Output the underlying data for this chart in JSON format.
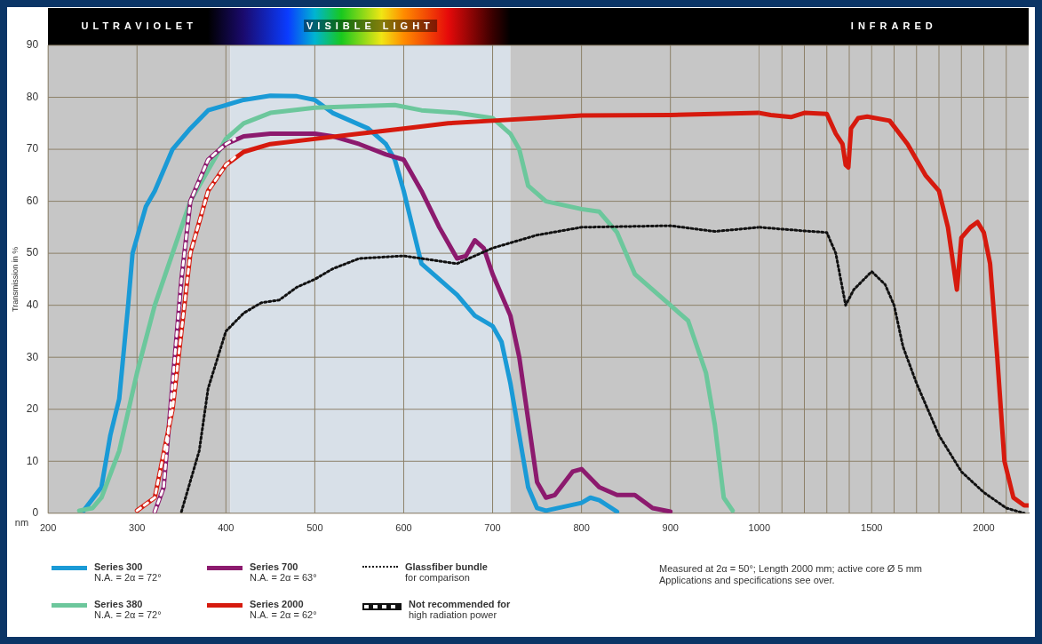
{
  "chart_data": [
    {
      "type": "line",
      "xlabel": "nm",
      "ylabel": "Transmission in %",
      "xlim": [
        200,
        1000
      ],
      "ylim": [
        0,
        90
      ],
      "xticks": [
        200,
        300,
        400,
        500,
        600,
        700,
        800,
        900,
        1000
      ],
      "yticks": [
        0,
        10,
        20,
        30,
        40,
        50,
        60,
        70,
        80,
        90
      ],
      "grid": true,
      "legend": "bottom",
      "marker": "none",
      "line_style": "solid",
      "bands": [
        {
          "axis": "x",
          "from": 200,
          "to": 405,
          "label": "ULTRAVIOLET",
          "color": "#c6c6c6"
        },
        {
          "axis": "x",
          "from": 405,
          "to": 720,
          "label": "VISIBLE LIGHT",
          "color": "#d8e0e8"
        },
        {
          "axis": "x",
          "from": 720,
          "to": 1000,
          "color": "#c6c6c6"
        }
      ],
      "series": [
        {
          "name": "Series 300\nN.A. = 2α = 72°",
          "type": "line",
          "color": "#1a9ad6",
          "x": [
            240,
            260,
            270,
            280,
            290,
            295,
            300,
            310,
            320,
            330,
            340,
            360,
            380,
            400,
            420,
            450,
            480,
            500,
            520,
            540,
            560,
            580,
            590,
            600,
            610,
            620,
            640,
            660,
            680,
            700,
            710,
            720,
            730,
            740,
            750,
            760,
            800,
            810,
            820,
            840
          ],
          "values": [
            0.5,
            5,
            15,
            22,
            40,
            50,
            53,
            59,
            62,
            66,
            70,
            74,
            77.5,
            78.5,
            79.5,
            80.3,
            80.2,
            79.5,
            77,
            75.5,
            74,
            71,
            68,
            62,
            55,
            48,
            45,
            42,
            38,
            36,
            33,
            25,
            15,
            5,
            1,
            0.5,
            2,
            3,
            2.5,
            0.3
          ]
        },
        {
          "name": "Series 380\nN.A. = 2α = 72°",
          "type": "line",
          "color": "#6cc79c",
          "x": [
            235,
            250,
            260,
            280,
            300,
            320,
            340,
            360,
            380,
            400,
            420,
            450,
            500,
            550,
            590,
            620,
            660,
            700,
            720,
            730,
            740,
            760,
            800,
            820,
            840,
            860,
            880,
            900,
            920,
            940,
            950,
            960,
            970
          ],
          "values": [
            0.5,
            1,
            3,
            12,
            27,
            40,
            50,
            60,
            66,
            72,
            75,
            77,
            78,
            78.3,
            78.5,
            77.5,
            77,
            76,
            73,
            70,
            63,
            60,
            58.5,
            58,
            54,
            46,
            43,
            40,
            37,
            27,
            17,
            3,
            0.5
          ]
        },
        {
          "name": "Series 700\nN.A. = 2α = 63°",
          "type": "line",
          "color": "#8c1a6e",
          "x": [
            320,
            330,
            340,
            350,
            360,
            380,
            400,
            420,
            450,
            500,
            520,
            550,
            580,
            600,
            620,
            640,
            660,
            670,
            680,
            690,
            700,
            720,
            730,
            740,
            750,
            760,
            770,
            790,
            800,
            820,
            840,
            860,
            880,
            900
          ],
          "values": [
            0.3,
            5,
            25,
            45,
            60,
            68,
            71,
            72.5,
            73,
            73,
            72.5,
            71,
            69,
            68,
            62,
            55,
            49,
            49.5,
            52.5,
            51,
            46,
            38,
            30,
            18,
            6,
            3,
            3.5,
            8,
            8.5,
            5,
            3.5,
            3.5,
            1,
            0.3
          ]
        },
        {
          "name": "Series 2000\nN.A. = 2α = 62°",
          "type": "line",
          "color": "#d61a0e",
          "x": [
            300,
            320,
            340,
            350,
            360,
            380,
            400,
            420,
            450,
            500,
            550,
            600,
            650,
            700,
            750,
            800,
            900,
            1000
          ],
          "values": [
            0.5,
            3,
            20,
            35,
            50,
            62,
            67,
            69.5,
            71,
            72,
            73,
            74,
            75,
            75.5,
            76,
            76.5,
            76.6,
            77
          ]
        },
        {
          "name": "Glassfiber bundle\nfor comparison",
          "type": "line",
          "color": "#111111",
          "line_style": "dotted",
          "x": [
            350,
            370,
            380,
            400,
            420,
            440,
            460,
            480,
            500,
            520,
            550,
            600,
            640,
            660,
            700,
            750,
            800,
            900,
            950,
            1000
          ],
          "values": [
            0.3,
            12,
            24,
            35,
            38.5,
            40.5,
            41,
            43.5,
            45,
            47,
            49,
            49.5,
            48.5,
            48,
            51,
            53.5,
            55,
            55.3,
            54.2,
            55
          ]
        },
        {
          "name": "Not recommended for\nhigh radiation power",
          "type": "line",
          "color": "#ffffff",
          "line_style": "dashed",
          "x": [
            320,
            330,
            340,
            350,
            360,
            380,
            400,
            410
          ],
          "values": [
            0.3,
            5,
            25,
            45,
            60,
            68,
            71,
            72
          ]
        },
        {
          "type": "line",
          "color": "#ffffff",
          "line_style": "dashed",
          "x": [
            300,
            320,
            340,
            350,
            360,
            380,
            400,
            410
          ],
          "values": [
            0.5,
            3,
            20,
            35,
            50,
            62,
            67,
            68.5
          ]
        }
      ],
      "annotations": [
        "Measured at 2α = 50°; Length 2000 mm; active core Ø 5 mm",
        "Applications and specifications see over."
      ]
    },
    {
      "type": "line",
      "xlim": [
        1000,
        2200
      ],
      "ylim": [
        0,
        90
      ],
      "xticks": [
        {
          "value": 1100,
          "label": null
        },
        {
          "value": 1200,
          "label": null
        },
        {
          "value": 1300,
          "label": null
        },
        {
          "value": 1400,
          "label": null
        },
        1500,
        {
          "value": 1600,
          "label": null
        },
        {
          "value": 1700,
          "label": null
        },
        {
          "value": 1800,
          "label": null
        },
        {
          "value": 1900,
          "label": null
        },
        2000,
        {
          "value": 2100,
          "label": null
        }
      ],
      "yticks": [
        0,
        10,
        20,
        30,
        40,
        50,
        60,
        70,
        80,
        90
      ],
      "tick_labels": "x",
      "grid": true,
      "marker": "none",
      "line_style": "solid",
      "bands": [
        {
          "axis": "x",
          "from": 1000,
          "to": 2200,
          "label": "INFRARED",
          "color": "#c6c6c6"
        }
      ],
      "series": [
        {
          "type": "line",
          "color": "#d61a0e",
          "x": [
            1000,
            1050,
            1140,
            1200,
            1300,
            1340,
            1370,
            1384,
            1396,
            1408,
            1440,
            1480,
            1580,
            1660,
            1740,
            1800,
            1840,
            1880,
            1900,
            1940,
            1972,
            2000,
            2028,
            2060,
            2092,
            2132,
            2180,
            2200
          ],
          "values": [
            77,
            76.6,
            76.2,
            77,
            76.8,
            73,
            71,
            67,
            66.5,
            74,
            76,
            76.3,
            75.5,
            71,
            65,
            62,
            55,
            43,
            53,
            55,
            56,
            54,
            48,
            30,
            10,
            3,
            1.5,
            1.5
          ]
        },
        {
          "type": "line",
          "color": "#111111",
          "line_style": "dotted",
          "x": [
            1000,
            1200,
            1300,
            1340,
            1384,
            1420,
            1500,
            1560,
            1600,
            1640,
            1700,
            1800,
            1900,
            2000,
            2100,
            2180
          ],
          "values": [
            55,
            54.3,
            54,
            50,
            40,
            43,
            46.5,
            44,
            40,
            32,
            25,
            15,
            8,
            4,
            1,
            0
          ]
        }
      ]
    }
  ]
}
